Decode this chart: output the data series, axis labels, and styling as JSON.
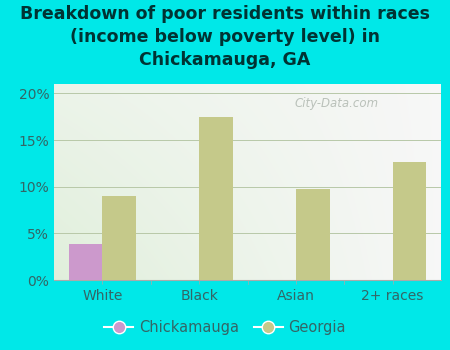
{
  "title": "Breakdown of poor residents within races\n(income below poverty level) in\nChickamauga, GA",
  "categories": [
    "White",
    "Black",
    "Asian",
    "2+ races"
  ],
  "chickamauga_values": [
    3.9,
    0,
    0,
    0
  ],
  "georgia_values": [
    9.0,
    17.5,
    9.7,
    12.6
  ],
  "chickamauga_color": "#cc99cc",
  "georgia_color": "#c5c98a",
  "background_color": "#00e8e8",
  "plot_bg_color": "#e8f0e0",
  "ylim": [
    0,
    21
  ],
  "yticks": [
    0,
    5,
    10,
    15,
    20
  ],
  "ytick_labels": [
    "0%",
    "5%",
    "10%",
    "15%",
    "20%"
  ],
  "bar_width": 0.35,
  "title_fontsize": 12.5,
  "axis_fontsize": 10,
  "legend_fontsize": 10.5,
  "watermark": "City-Data.com",
  "text_color": "#336666"
}
